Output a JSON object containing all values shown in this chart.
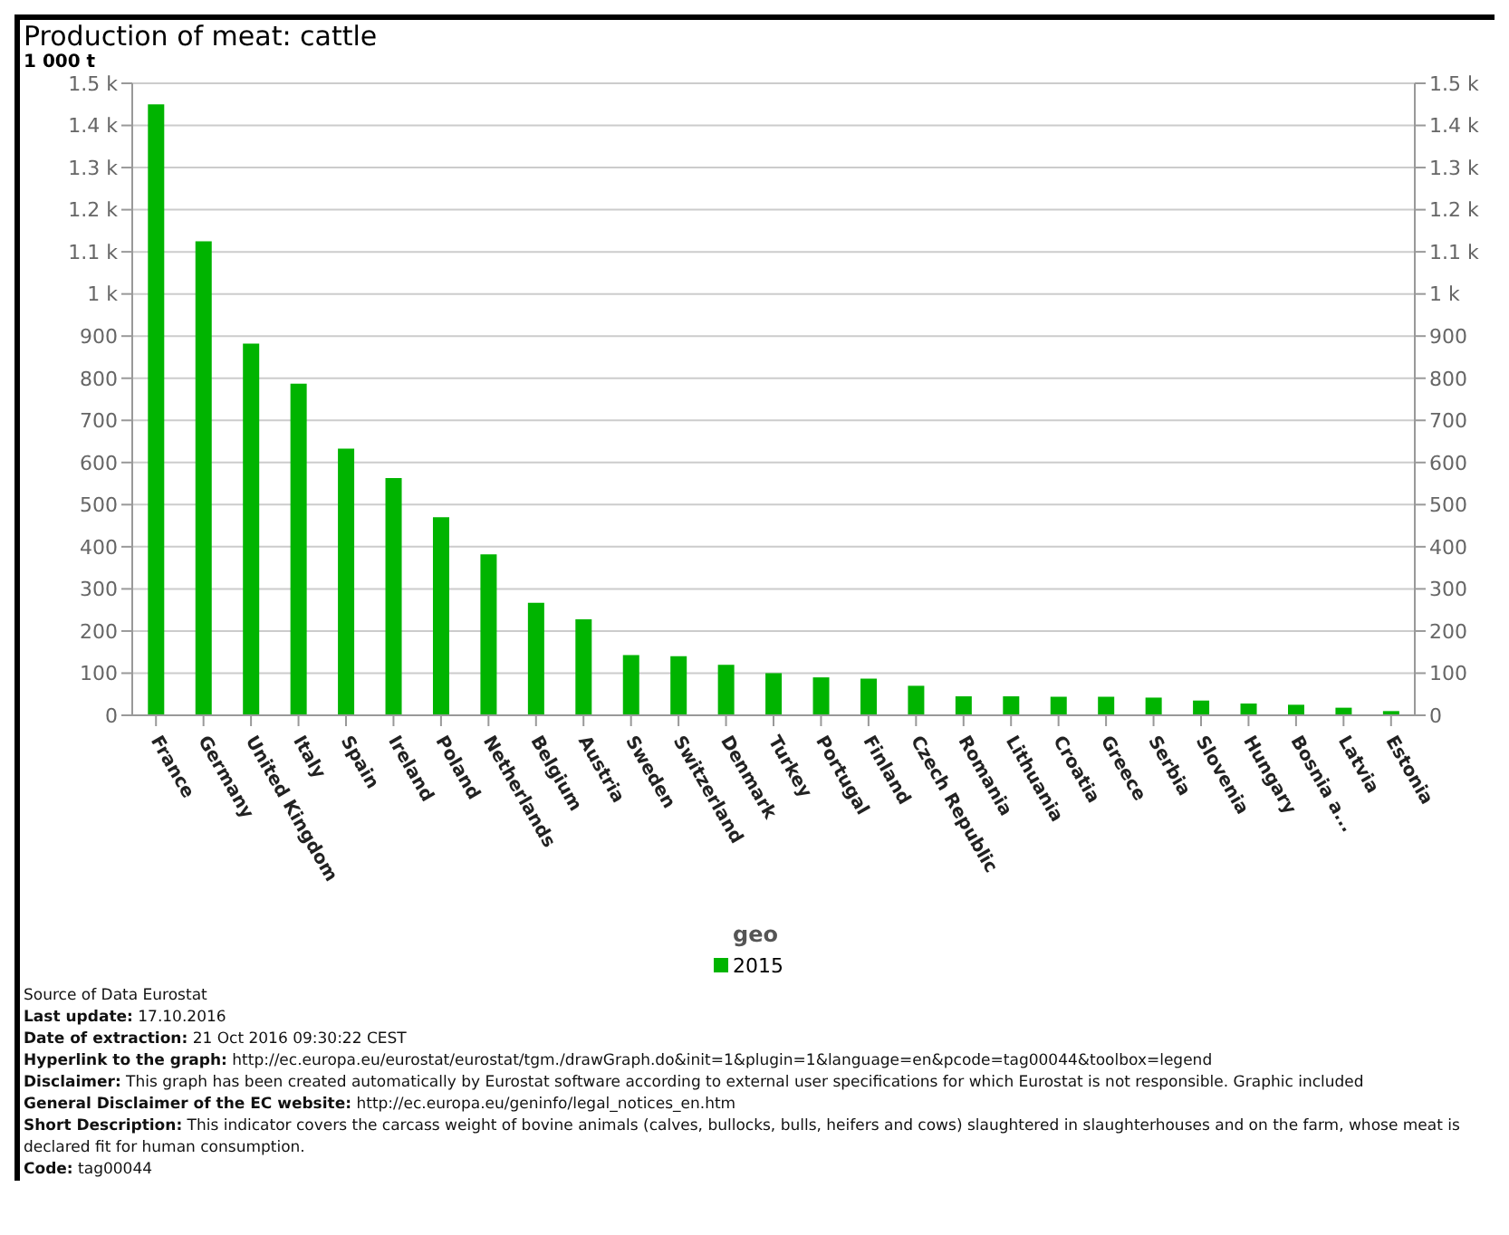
{
  "chart_data": {
    "type": "bar",
    "title": "Production of meat: cattle",
    "ylabel": "1 000 t",
    "legend_title": "geo",
    "categories": [
      "France",
      "Germany",
      "United Kingdom",
      "Italy",
      "Spain",
      "Ireland",
      "Poland",
      "Netherlands",
      "Belgium",
      "Austria",
      "Sweden",
      "Switzerland",
      "Denmark",
      "Turkey",
      "Portugal",
      "Finland",
      "Czech Republic",
      "Romania",
      "Lithuania",
      "Croatia",
      "Greece",
      "Serbia",
      "Slovenia",
      "Hungary",
      "Bosnia a...",
      "Latvia",
      "Estonia"
    ],
    "series": [
      {
        "name": "2015",
        "color": "#00b400",
        "values": [
          1450,
          1125,
          882,
          787,
          633,
          563,
          470,
          382,
          267,
          228,
          143,
          140,
          120,
          100,
          90,
          87,
          70,
          45,
          45,
          44,
          44,
          42,
          35,
          28,
          25,
          18,
          10
        ]
      }
    ],
    "ylim": [
      0,
      1500
    ],
    "yticks": [
      0,
      100,
      200,
      300,
      400,
      500,
      600,
      700,
      800,
      900,
      {
        "value": 1000,
        "label": "1 k"
      },
      {
        "value": 1100,
        "label": "1.1 k"
      },
      {
        "value": 1200,
        "label": "1.2 k"
      },
      {
        "value": 1300,
        "label": "1.3 k"
      },
      {
        "value": 1400,
        "label": "1.4 k"
      },
      {
        "value": 1500,
        "label": "1.5 k"
      }
    ],
    "y2lim": [
      0,
      1500
    ],
    "y2ticks": [
      0,
      100,
      200,
      300,
      400,
      500,
      600,
      700,
      800,
      900,
      {
        "value": 1000,
        "label": "1 k"
      },
      {
        "value": 1100,
        "label": "1.1 k"
      },
      {
        "value": 1200,
        "label": "1.2 k"
      },
      {
        "value": 1300,
        "label": "1.3 k"
      },
      {
        "value": 1400,
        "label": "1.4 k"
      },
      {
        "value": 1500,
        "label": "1.5 k"
      }
    ],
    "grid": "y",
    "legend": "bottom",
    "annotations": [
      "Source of Data Eurostat",
      "Last update: 17.10.2016",
      "Date of extraction: 21 Oct 2016 09:30:22 CEST",
      "Hyperlink to the graph: http://ec.europa.eu/eurostat/eurostat/tgm./drawGraph.do&init=1&plugin=1&language=en&pcode=tag00044&toolbox=legend",
      "Disclaimer: This graph has been created automatically by Eurostat software according to external user specifications for which Eurostat is not responsible. Graphic included",
      "General Disclaimer of the EC website: http://ec.europa.eu/geninfo/legal_notices_en.htm",
      "Short Description: This indicator covers the carcass weight of bovine animals (calves, bullocks, bulls, heifers and cows) slaughtered in slaughterhouses and on the farm, whose meat is declared fit for human consumption.",
      "Code: tag00044"
    ]
  }
}
